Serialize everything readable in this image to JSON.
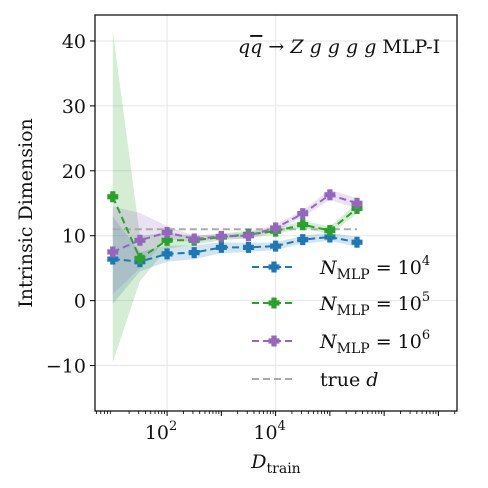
{
  "chart_data": {
    "type": "line",
    "annotation": {
      "pre": "q",
      "bar": "q",
      "mid": " → Z g g g g",
      "suffix": " MLP-I"
    },
    "xlabel": {
      "main": "D",
      "sub": "train"
    },
    "ylabel": "Intrinsic Dimension",
    "x_scale": "log",
    "xlim": [
      4.7,
      22000000
    ],
    "ylim": [
      -17,
      44
    ],
    "x_ticks": [
      {
        "value": 100,
        "base": "10",
        "exp": "2"
      },
      {
        "value": 10000,
        "base": "10",
        "exp": "4"
      }
    ],
    "y_ticks": [
      {
        "value": 40,
        "label": "40"
      },
      {
        "value": 30,
        "label": "30"
      },
      {
        "value": 20,
        "label": "20"
      },
      {
        "value": 10,
        "label": "10"
      },
      {
        "value": 0,
        "label": "0"
      },
      {
        "value": -10,
        "label": "−10"
      }
    ],
    "grid": true,
    "legend_position": "lower-right",
    "x": [
      10,
      31.6,
      100,
      316,
      1000,
      3162,
      10000,
      31623,
      100000,
      316228
    ],
    "series": [
      {
        "name_prefix": "N",
        "name_sub": "MLP",
        "name_eq": " = 10",
        "name_exp": "4",
        "color": "#1f77b4",
        "values": [
          6.4,
          6.0,
          7.2,
          7.4,
          8.2,
          8.2,
          8.4,
          9.4,
          9.8,
          9.0
        ],
        "lower": [
          -0.5,
          4.5,
          6.0,
          6.4,
          7.3,
          7.5,
          7.8,
          8.8,
          9.2,
          8.3
        ],
        "upper": [
          13.0,
          7.5,
          8.5,
          8.5,
          9.0,
          8.9,
          9.0,
          10.0,
          10.5,
          9.8
        ]
      },
      {
        "name_prefix": "N",
        "name_sub": "MLP",
        "name_eq": " = 10",
        "name_exp": "5",
        "color": "#2ca02c",
        "values": [
          16.0,
          6.5,
          9.3,
          9.3,
          9.8,
          10.2,
          10.7,
          11.7,
          10.8,
          14.2
        ],
        "lower": [
          -9.5,
          3.0,
          8.0,
          8.6,
          9.3,
          9.6,
          10.2,
          11.2,
          10.2,
          13.4
        ],
        "upper": [
          41.5,
          10.0,
          10.5,
          10.0,
          10.3,
          10.8,
          11.2,
          12.3,
          11.4,
          15.0
        ]
      },
      {
        "name_prefix": "N",
        "name_sub": "MLP",
        "name_eq": " = 10",
        "name_exp": "6",
        "color": "#9467bd",
        "values": [
          7.5,
          9.3,
          10.5,
          9.5,
          9.9,
          10.0,
          11.2,
          13.4,
          16.3,
          15.0
        ],
        "lower": [
          1.0,
          5.0,
          9.5,
          9.0,
          9.5,
          9.6,
          10.7,
          12.9,
          15.5,
          14.2
        ],
        "upper": [
          14.5,
          13.5,
          11.5,
          10.0,
          10.3,
          10.4,
          11.7,
          13.9,
          17.1,
          15.8
        ]
      }
    ],
    "reference_line": {
      "name_prefix": "true ",
      "name_var": "d",
      "value": 11,
      "color": "#aaaaaa"
    }
  }
}
